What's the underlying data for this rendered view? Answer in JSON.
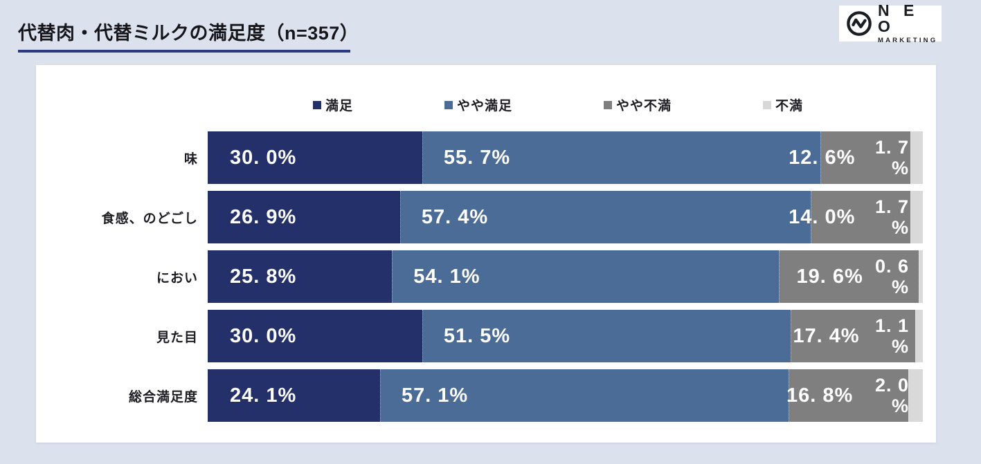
{
  "page": {
    "title": "代替肉・代替ミルクの満足度（n=357）"
  },
  "logo": {
    "name": "N E O",
    "sub": "MARKETING",
    "icon": "pulse-circle-icon"
  },
  "colors": {
    "background": "#dce1ee",
    "card": "#ffffff",
    "title_underline": "#2c3a80",
    "label_text": "#ffffff"
  },
  "chart_data": {
    "type": "bar",
    "orientation": "horizontal",
    "stacked": true,
    "title": "代替肉・代替ミルクの満足度（n=357）",
    "sample_size": 357,
    "xlim": [
      0,
      100
    ],
    "legend_position": "top",
    "grid": false,
    "categories": [
      "味",
      "食感、のどごし",
      "におい",
      "見た目",
      "総合満足度"
    ],
    "series": [
      {
        "name": "満足",
        "color": "#24306a",
        "values": [
          30.0,
          26.9,
          25.8,
          30.0,
          24.1
        ]
      },
      {
        "name": "やや満足",
        "color": "#4a6c96",
        "values": [
          55.7,
          57.4,
          54.1,
          51.5,
          57.1
        ]
      },
      {
        "name": "やや不満",
        "color": "#7f7f7f",
        "values": [
          12.6,
          14.0,
          19.6,
          17.4,
          16.8
        ]
      },
      {
        "name": "不満",
        "color": "#d9d9d9",
        "values": [
          1.7,
          1.7,
          0.6,
          1.1,
          2.0
        ]
      }
    ]
  },
  "legend": {
    "items": [
      {
        "label": "満足"
      },
      {
        "label": "やや満足"
      },
      {
        "label": "やや不満"
      },
      {
        "label": "不満"
      }
    ]
  },
  "rows": [
    {
      "category": "味",
      "labels": [
        "30. 0%",
        "55. 7%",
        "12. 6%"
      ],
      "last_line1": "1. 7",
      "last_line2": "%"
    },
    {
      "category": "食感、のどごし",
      "labels": [
        "26. 9%",
        "57. 4%",
        "14. 0%"
      ],
      "last_line1": "1. 7",
      "last_line2": "%"
    },
    {
      "category": "におい",
      "labels": [
        "25. 8%",
        "54. 1%",
        "19. 6%"
      ],
      "last_line1": "0. 6",
      "last_line2": "%"
    },
    {
      "category": "見た目",
      "labels": [
        "30. 0%",
        "51. 5%",
        "17. 4%"
      ],
      "last_line1": "1. 1",
      "last_line2": "%"
    },
    {
      "category": "総合満足度",
      "labels": [
        "24. 1%",
        "57. 1%",
        "16. 8%"
      ],
      "last_line1": "2. 0",
      "last_line2": "%"
    }
  ]
}
